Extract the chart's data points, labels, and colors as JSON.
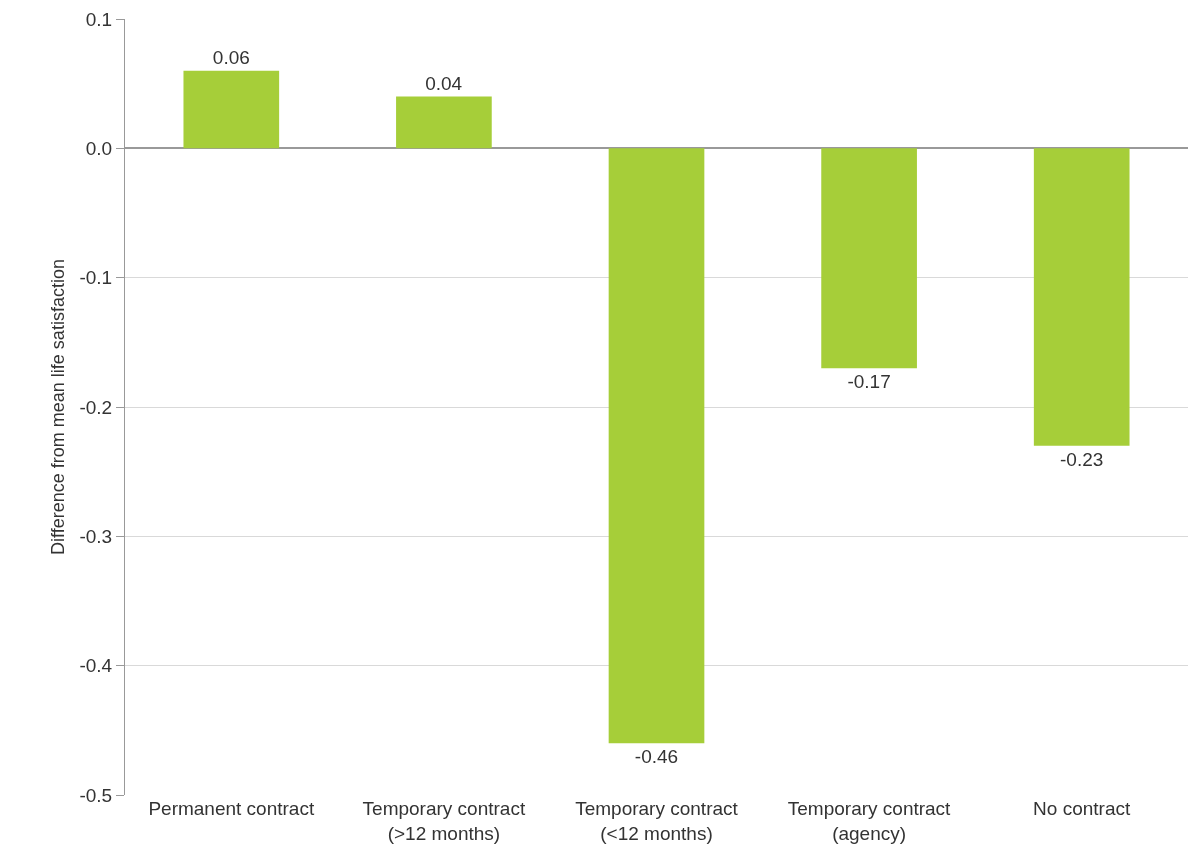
{
  "chart_data": {
    "type": "bar",
    "ylabel": "Difference from mean life satisfaction",
    "categories": [
      "Permanent contract",
      "Temporary contract\n(>12 months)",
      "Temporary contract\n(<12 months)",
      "Temporary contract\n(agency)",
      "No contract"
    ],
    "values": [
      0.06,
      0.04,
      -0.46,
      -0.17,
      -0.23
    ],
    "color": "#a6ce39",
    "ylim": [
      -0.5,
      0.1
    ],
    "yticks": [
      -0.5,
      -0.4,
      -0.3,
      -0.2,
      -0.1,
      {
        "value": 0,
        "label": "0.0"
      },
      0.1
    ],
    "grid": "y",
    "data_labels": true
  }
}
